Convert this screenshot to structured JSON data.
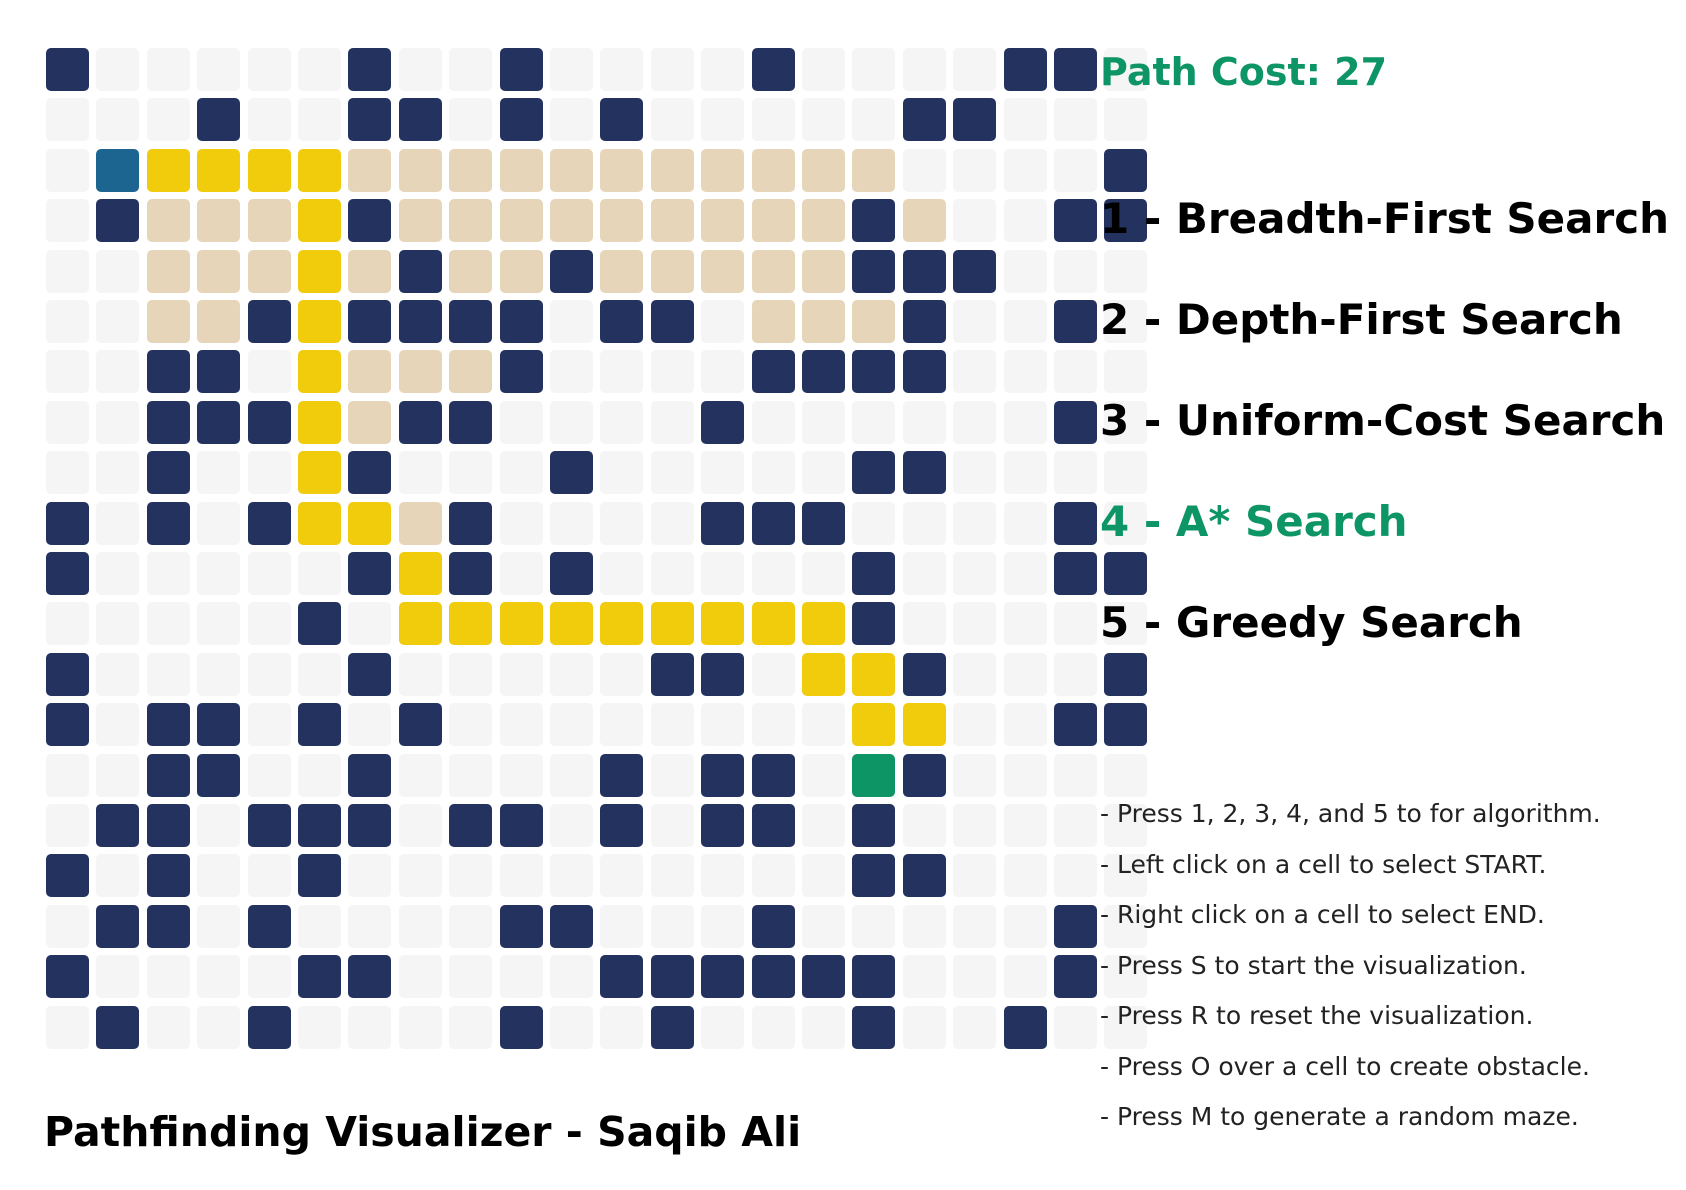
{
  "app_title": "Pathfinding Visualizer - Saqib Ali",
  "path_cost_label": "Path Cost: 27",
  "colors": {
    "accent": "#0d9566",
    "text": "#000000",
    "empty_cell": "#f5f5f5",
    "wall_cell": "#23325e",
    "visited_cell": "#e6d5b8",
    "path_cell": "#f0cc0c",
    "start_cell": "#1b6590",
    "end_cell": "#0d9566"
  },
  "algorithms": [
    {
      "label": "1 - Breadth-First Search",
      "selected": false
    },
    {
      "label": "2 - Depth-First Search",
      "selected": false
    },
    {
      "label": "3 - Uniform-Cost Search",
      "selected": false
    },
    {
      "label": "4 - A* Search",
      "selected": true
    },
    {
      "label": "5 - Greedy Search",
      "selected": false
    }
  ],
  "instructions": [
    "- Press 1, 2, 3, 4, and 5 to for algorithm.",
    "- Left click on a cell to select START.",
    "- Right click on a cell to select END.",
    "- Press S to start the visualization.",
    "- Press R to reset the visualization.",
    "- Press O over a cell to create obstacle.",
    "- Press M to generate a random maze."
  ],
  "grid_legend": {
    ".": "empty",
    "#": "wall",
    "v": "visited",
    "p": "path",
    "S": "start",
    "E": "end"
  },
  "grid": [
    "#.....#..#....#....##.",
    "...#..##.#.#.....##...",
    ".Sppppvvvvvvvvvvv....#",
    ".#vvvp#vvvvvvvvv#v..##",
    "..vvvpv#vv#vvvvv###...",
    "..vv#p####.##.vvv#..#.",
    "..##.pvvv#....####....",
    "..###pv##....#......#.",
    "..#..p#...#.....##....",
    "#.#.#ppv#....###....#.",
    "#.....#p#.#.....#...##",
    ".....#.ppppppppp#.....",
    "#.....#.....##.pp#...#",
    "#.##.#.#........pp..##",
    "..##..#....#.##.E#....",
    ".##.###.##.#.##.#.....",
    "#.#..#..........##....",
    ".##.#....##...#.....#.",
    "#....##....######...#.",
    ".#..#....#..#...#..#.."
  ]
}
